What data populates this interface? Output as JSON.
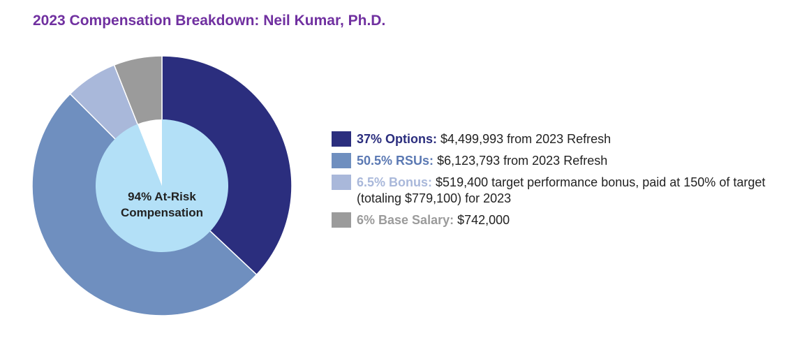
{
  "title": "2023 Compensation Breakdown: Neil Kumar, Ph.D.",
  "center_label": [
    "94% At-Risk",
    "Compensation"
  ],
  "colors": {
    "options": "#2b2e7e",
    "rsus": "#6f8fbf",
    "bonus": "#a9b8da",
    "base": "#9b9b9b",
    "inner": "#b3e0f7",
    "title": "#7030a0"
  },
  "chart_data": {
    "type": "pie",
    "title": "2023 Compensation Breakdown: Neil Kumar, Ph.D.",
    "categories": [
      "Options",
      "RSUs",
      "Bonus",
      "Base Salary"
    ],
    "values": [
      37,
      50.5,
      6.5,
      6
    ],
    "inner_ring": {
      "label": "94% At-Risk Compensation",
      "values": [
        94,
        6
      ]
    }
  },
  "legend": [
    {
      "label": "37% Options:",
      "text": " $4,499,993 from 2023 Refresh",
      "color": "#2b2e7e",
      "label_color": "#2b2e7e"
    },
    {
      "label": "50.5% RSUs:",
      "text": " $6,123,793 from 2023 Refresh",
      "color": "#6f8fbf",
      "label_color": "#5b79b3"
    },
    {
      "label": "6.5% Bonus:",
      "text": " $519,400 target performance bonus, paid at 150% of target (totaling  $779,100) for 2023",
      "color": "#a9b8da",
      "label_color": "#a9b8da"
    },
    {
      "label": "6% Base Salary:",
      "text": " $742,000",
      "color": "#9b9b9b",
      "label_color": "#9b9b9b"
    }
  ]
}
